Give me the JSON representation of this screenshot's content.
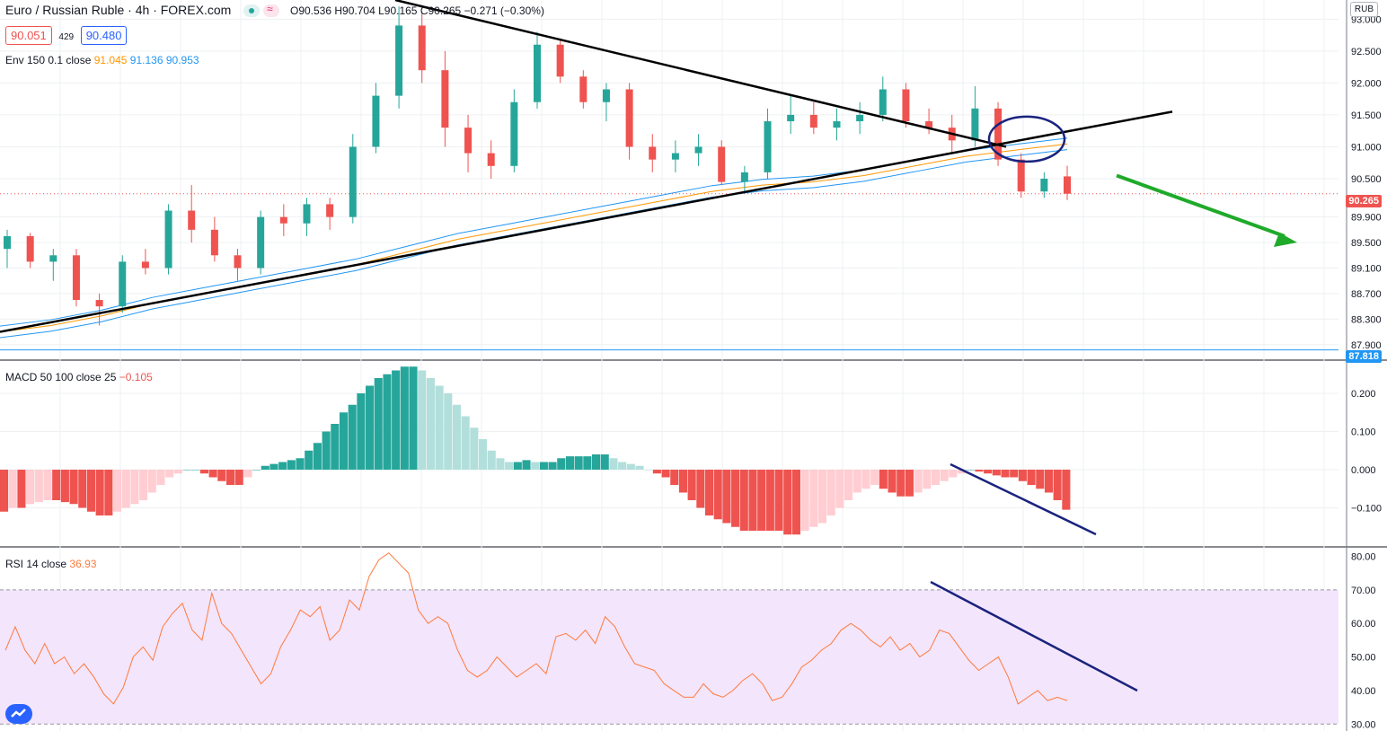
{
  "header": {
    "symbol": "Euro / Russian Ruble · 4h · FOREX.com",
    "ohlc": {
      "o_label": "O",
      "o": "90.536",
      "h_label": "H",
      "h": "90.704",
      "l_label": "L",
      "l": "90.165",
      "c_label": "C",
      "c": "90.265",
      "change": "−0.271 (−0.30%)"
    },
    "bid": "90.051",
    "spread": "429",
    "ask": "90.480",
    "envelope": {
      "label": "Env 150 0.1 close",
      "v1": "91.045",
      "v2": "91.136",
      "v3": "90.953"
    },
    "macd": {
      "label": "MACD 50 100 close 25",
      "value": "−0.105"
    },
    "rsi": {
      "label": "RSI 14 close",
      "value": "36.93"
    }
  },
  "currency": "RUB",
  "price_tags": {
    "last": "90.265",
    "low": "87.818"
  },
  "colors": {
    "up": "#26a69a",
    "down": "#ef5350",
    "env_mid": "#ff9800",
    "env_band": "#2196f3",
    "rsi_line": "#ff7a3d",
    "rsi_band": "#f3e5fb",
    "hist_up_strong": "#26a69a",
    "hist_up_weak": "#b2dfdb",
    "hist_down_strong": "#ef5350",
    "hist_down_weak": "#ffcdd2",
    "trend_black": "#000000",
    "trend_blue": "#1a237e",
    "arrow_green": "#1faa2a"
  },
  "chart_data": [
    {
      "type": "candlestick",
      "y_ticks": [
        "93.000",
        "92.500",
        "92.000",
        "91.500",
        "91.000",
        "90.500",
        "89.900",
        "89.500",
        "89.100",
        "88.700",
        "88.300",
        "87.900"
      ],
      "ylim": [
        87.7,
        93.3
      ],
      "series": [
        {
          "name": "Env 150 0.1 close",
          "values": [
            88.1,
            88.2,
            88.35,
            88.55,
            88.7,
            88.85,
            89.0,
            89.15,
            89.35,
            89.55,
            89.7,
            89.85,
            90.0,
            90.15,
            90.3,
            90.4,
            90.45,
            90.55,
            90.7,
            90.85,
            90.95,
            91.045
          ]
        }
      ],
      "candles": [
        [
          89.4,
          89.7,
          89.1,
          89.6
        ],
        [
          89.6,
          89.65,
          89.1,
          89.2
        ],
        [
          89.2,
          89.4,
          88.9,
          89.3
        ],
        [
          89.3,
          89.4,
          88.5,
          88.6
        ],
        [
          88.6,
          88.7,
          88.2,
          88.5
        ],
        [
          88.5,
          89.3,
          88.4,
          89.2
        ],
        [
          89.2,
          89.4,
          89.0,
          89.1
        ],
        [
          89.1,
          90.1,
          89.0,
          90.0
        ],
        [
          90.0,
          90.4,
          89.5,
          89.7
        ],
        [
          89.7,
          89.9,
          89.2,
          89.3
        ],
        [
          89.3,
          89.4,
          88.9,
          89.1
        ],
        [
          89.1,
          90.0,
          89.0,
          89.9
        ],
        [
          89.9,
          90.1,
          89.6,
          89.8
        ],
        [
          89.8,
          90.2,
          89.6,
          90.1
        ],
        [
          90.1,
          90.2,
          89.7,
          89.9
        ],
        [
          89.9,
          91.2,
          89.8,
          91.0
        ],
        [
          91.0,
          92.0,
          90.9,
          91.8
        ],
        [
          91.8,
          93.2,
          91.6,
          92.9
        ],
        [
          92.9,
          93.1,
          92.0,
          92.2
        ],
        [
          92.2,
          92.5,
          91.0,
          91.3
        ],
        [
          91.3,
          91.5,
          90.6,
          90.9
        ],
        [
          90.9,
          91.1,
          90.5,
          90.7
        ],
        [
          90.7,
          91.9,
          90.6,
          91.7
        ],
        [
          91.7,
          92.8,
          91.6,
          92.6
        ],
        [
          92.6,
          92.7,
          92.0,
          92.1
        ],
        [
          92.1,
          92.2,
          91.6,
          91.7
        ],
        [
          91.7,
          92.0,
          91.4,
          91.9
        ],
        [
          91.9,
          92.0,
          90.8,
          91.0
        ],
        [
          91.0,
          91.2,
          90.6,
          90.8
        ],
        [
          90.8,
          91.1,
          90.6,
          90.9
        ],
        [
          90.9,
          91.2,
          90.7,
          91.0
        ],
        [
          91.0,
          91.1,
          90.4,
          90.45
        ],
        [
          90.45,
          90.7,
          90.3,
          90.6
        ],
        [
          90.6,
          91.6,
          90.5,
          91.4
        ],
        [
          91.4,
          91.8,
          91.2,
          91.5
        ],
        [
          91.5,
          91.7,
          91.2,
          91.3
        ],
        [
          91.3,
          91.6,
          91.1,
          91.4
        ],
        [
          91.4,
          91.7,
          91.2,
          91.5
        ],
        [
          91.5,
          92.1,
          91.4,
          91.9
        ],
        [
          91.9,
          92.0,
          91.3,
          91.4
        ],
        [
          91.4,
          91.6,
          91.2,
          91.3
        ],
        [
          91.3,
          91.5,
          90.9,
          91.1
        ],
        [
          91.1,
          91.95,
          91.0,
          91.6
        ],
        [
          91.6,
          91.7,
          90.7,
          90.8
        ],
        [
          90.8,
          90.9,
          90.2,
          90.3
        ],
        [
          90.3,
          90.6,
          90.2,
          90.5
        ],
        [
          90.536,
          90.704,
          90.165,
          90.265
        ]
      ]
    },
    {
      "type": "bar",
      "title": "MACD 50 100 close 25",
      "y_ticks": [
        "0.200",
        "0.100",
        "0.000",
        "−0.100"
      ],
      "ylim": [
        -0.2,
        0.28
      ],
      "values": [
        -0.11,
        -0.1,
        -0.1,
        -0.09,
        -0.085,
        -0.08,
        -0.08,
        -0.085,
        -0.09,
        -0.1,
        -0.11,
        -0.12,
        -0.12,
        -0.11,
        -0.1,
        -0.09,
        -0.08,
        -0.06,
        -0.04,
        -0.02,
        -0.01,
        0.0,
        0.0,
        -0.01,
        -0.02,
        -0.03,
        -0.04,
        -0.04,
        -0.02,
        0.0,
        0.01,
        0.015,
        0.02,
        0.025,
        0.03,
        0.05,
        0.07,
        0.1,
        0.12,
        0.15,
        0.17,
        0.2,
        0.22,
        0.24,
        0.25,
        0.26,
        0.27,
        0.27,
        0.26,
        0.24,
        0.22,
        0.2,
        0.17,
        0.14,
        0.11,
        0.08,
        0.05,
        0.03,
        0.02,
        0.02,
        0.025,
        0.02,
        0.02,
        0.02,
        0.03,
        0.035,
        0.035,
        0.035,
        0.04,
        0.04,
        0.03,
        0.02,
        0.015,
        0.01,
        0.0,
        -0.01,
        -0.02,
        -0.04,
        -0.06,
        -0.08,
        -0.1,
        -0.12,
        -0.13,
        -0.14,
        -0.15,
        -0.16,
        -0.16,
        -0.16,
        -0.16,
        -0.16,
        -0.17,
        -0.17,
        -0.16,
        -0.15,
        -0.14,
        -0.12,
        -0.1,
        -0.08,
        -0.06,
        -0.05,
        -0.04,
        -0.05,
        -0.06,
        -0.07,
        -0.07,
        -0.06,
        -0.05,
        -0.04,
        -0.03,
        -0.02,
        -0.01,
        0.0,
        -0.005,
        -0.01,
        -0.015,
        -0.02,
        -0.02,
        -0.03,
        -0.04,
        -0.05,
        -0.06,
        -0.08,
        -0.105
      ]
    },
    {
      "type": "line",
      "title": "RSI 14 close",
      "y_ticks": [
        "80.00",
        "70.00",
        "60.00",
        "50.00",
        "40.00",
        "30.00"
      ],
      "ylim": [
        29,
        82
      ],
      "values": [
        52,
        59,
        52,
        48,
        54,
        48,
        50,
        45,
        48,
        44,
        39,
        36,
        41,
        50,
        53,
        49,
        59,
        63,
        66,
        58,
        55,
        69,
        60,
        57,
        52,
        47,
        42,
        45,
        53,
        58,
        64,
        62,
        65,
        55,
        58,
        67,
        64,
        74,
        79,
        81,
        78,
        75,
        64,
        60,
        62,
        60,
        52,
        46,
        44,
        46,
        50,
        47,
        44,
        46,
        48,
        45,
        56,
        57,
        55,
        58,
        54,
        62,
        59,
        53,
        48,
        47,
        46,
        42,
        40,
        38,
        38,
        42,
        39,
        38,
        40,
        43,
        45,
        42,
        37,
        38,
        42,
        47,
        49,
        52,
        54,
        58,
        60,
        58,
        55,
        53,
        56,
        52,
        54,
        50,
        52,
        58,
        57,
        53,
        49,
        46,
        48,
        50,
        44,
        36,
        38,
        40,
        37,
        38,
        37
      ]
    }
  ]
}
